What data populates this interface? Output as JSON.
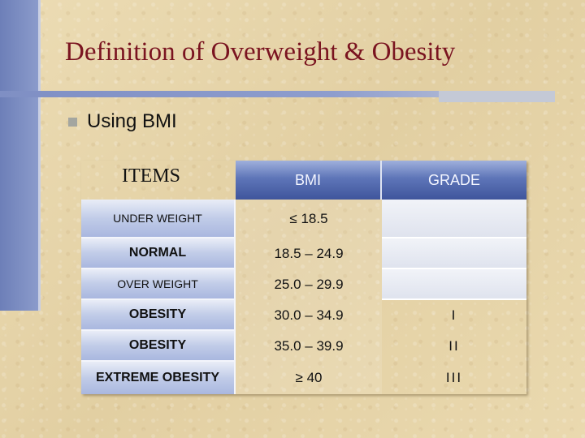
{
  "title": "Definition of Overweight & Obesity",
  "bullet": "Using BMI",
  "table": {
    "items_header": "ITEMS",
    "bmi_header": "BMI",
    "grade_header": "GRADE",
    "rows": [
      {
        "item": "UNDER WEIGHT",
        "bmi": "≤ 18.5",
        "grade": ""
      },
      {
        "item": "NORMAL",
        "bmi": "18.5 – 24.9",
        "grade": ""
      },
      {
        "item": "OVER WEIGHT",
        "bmi": "25.0 – 29.9",
        "grade": ""
      },
      {
        "item": "OBESITY",
        "bmi": "30.0 – 34.9",
        "grade": "I"
      },
      {
        "item": "OBESITY",
        "bmi": "35.0 – 39.9",
        "grade": "II"
      },
      {
        "item": "EXTREME OBESITY",
        "bmi": "≥ 40",
        "grade": "III"
      }
    ]
  },
  "colors": {
    "title": "#7a1420",
    "accent_bar": "#7f8fc4",
    "header_bg": "#4a62a8",
    "background": "#e8d6ac"
  }
}
